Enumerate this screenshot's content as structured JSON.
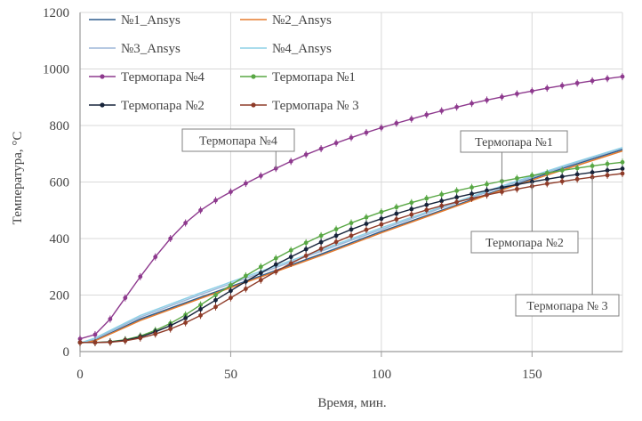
{
  "chart_data": {
    "type": "line",
    "title": "",
    "xlabel": "Время, мин.",
    "ylabel": "Температура, °С",
    "xlim": [
      0,
      180
    ],
    "ylim": [
      0,
      1200
    ],
    "xticks": [
      0,
      50,
      100,
      150
    ],
    "yticks": [
      0,
      200,
      400,
      600,
      800,
      1000,
      1200
    ],
    "grid": true,
    "legend_position": "top-left",
    "series": [
      {
        "name": "№1_Ansys",
        "color": "#2e5d8e",
        "style": "line",
        "x": [
          0,
          5,
          20,
          40,
          60,
          80,
          100,
          120,
          140,
          160,
          180
        ],
        "y": [
          30,
          40,
          115,
          192,
          268,
          345,
          425,
          500,
          575,
          648,
          715
        ]
      },
      {
        "name": "№2_Ansys",
        "color": "#e57c2f",
        "style": "line",
        "x": [
          0,
          5,
          20,
          40,
          60,
          80,
          100,
          120,
          140,
          160,
          180
        ],
        "y": [
          30,
          38,
          110,
          188,
          264,
          340,
          420,
          496,
          572,
          642,
          710
        ]
      },
      {
        "name": "№3_Ansys",
        "color": "#9db7d8",
        "style": "line",
        "x": [
          0,
          5,
          20,
          40,
          60,
          80,
          100,
          120,
          140,
          160,
          180
        ],
        "y": [
          30,
          45,
          122,
          202,
          278,
          355,
          432,
          508,
          582,
          652,
          720
        ]
      },
      {
        "name": "№4_Ansys",
        "color": "#8ed0e6",
        "style": "line",
        "x": [
          0,
          5,
          20,
          40,
          60,
          80,
          100,
          120,
          140,
          160,
          180
        ],
        "y": [
          30,
          48,
          128,
          208,
          284,
          360,
          438,
          512,
          586,
          656,
          722
        ]
      },
      {
        "name": "Термопара №4",
        "color": "#8e3a8e",
        "style": "marker",
        "x": [
          0,
          5,
          10,
          15,
          20,
          25,
          30,
          35,
          40,
          45,
          50,
          55,
          60,
          65,
          70,
          75,
          80,
          85,
          90,
          95,
          100,
          105,
          110,
          115,
          120,
          125,
          130,
          135,
          140,
          145,
          150,
          155,
          160,
          165,
          170,
          175,
          180
        ],
        "y": [
          45,
          60,
          115,
          190,
          265,
          335,
          400,
          455,
          500,
          535,
          565,
          595,
          622,
          648,
          673,
          697,
          718,
          738,
          757,
          775,
          792,
          808,
          823,
          838,
          852,
          865,
          878,
          890,
          901,
          912,
          922,
          932,
          941,
          950,
          958,
          966,
          973
        ]
      },
      {
        "name": "Термопара №1",
        "color": "#58a744",
        "style": "marker",
        "x": [
          0,
          5,
          10,
          15,
          20,
          25,
          30,
          35,
          40,
          45,
          50,
          55,
          60,
          65,
          70,
          75,
          80,
          85,
          90,
          95,
          100,
          105,
          110,
          115,
          120,
          125,
          130,
          135,
          140,
          145,
          150,
          155,
          160,
          165,
          170,
          175,
          180
        ],
        "y": [
          32,
          32,
          35,
          42,
          55,
          75,
          100,
          130,
          165,
          200,
          235,
          268,
          300,
          330,
          358,
          385,
          410,
          433,
          455,
          475,
          494,
          511,
          527,
          542,
          556,
          569,
          581,
          592,
          603,
          613,
          623,
          632,
          641,
          649,
          657,
          664,
          670
        ]
      },
      {
        "name": "Термопара №2",
        "color": "#16233a",
        "style": "marker",
        "x": [
          0,
          5,
          10,
          15,
          20,
          25,
          30,
          35,
          40,
          45,
          50,
          55,
          60,
          65,
          70,
          75,
          80,
          85,
          90,
          95,
          100,
          105,
          110,
          115,
          120,
          125,
          130,
          135,
          140,
          145,
          150,
          155,
          160,
          165,
          170,
          175,
          180
        ],
        "y": [
          32,
          32,
          34,
          40,
          52,
          70,
          92,
          118,
          150,
          182,
          215,
          248,
          278,
          308,
          335,
          362,
          387,
          410,
          432,
          452,
          470,
          488,
          504,
          519,
          533,
          546,
          558,
          570,
          581,
          591,
          601,
          610,
          619,
          627,
          634,
          641,
          647
        ]
      },
      {
        "name": "Термопара № 3",
        "color": "#8e3b28",
        "style": "marker",
        "x": [
          0,
          5,
          10,
          15,
          20,
          25,
          30,
          35,
          40,
          45,
          50,
          55,
          60,
          65,
          70,
          75,
          80,
          85,
          90,
          95,
          100,
          105,
          110,
          115,
          120,
          125,
          130,
          135,
          140,
          145,
          150,
          155,
          160,
          165,
          170,
          175,
          180
        ],
        "y": [
          32,
          32,
          33,
          38,
          48,
          62,
          80,
          102,
          128,
          158,
          190,
          222,
          253,
          283,
          312,
          339,
          364,
          388,
          410,
          431,
          450,
          468,
          485,
          501,
          516,
          529,
          542,
          554,
          565,
          575,
          585,
          594,
          602,
          610,
          617,
          624,
          630
        ]
      }
    ],
    "annotations": [
      {
        "text": "Термопара №4",
        "series": "Термопара №4",
        "at_x": 65
      },
      {
        "text": "Термопара №1",
        "series": "Термопара №1",
        "at_x": 140
      },
      {
        "text": "Термопара №2",
        "series": "Термопара №2",
        "at_x": 150
      },
      {
        "text": "Термопара № 3",
        "series": "Термопара № 3",
        "at_x": 170
      }
    ]
  }
}
